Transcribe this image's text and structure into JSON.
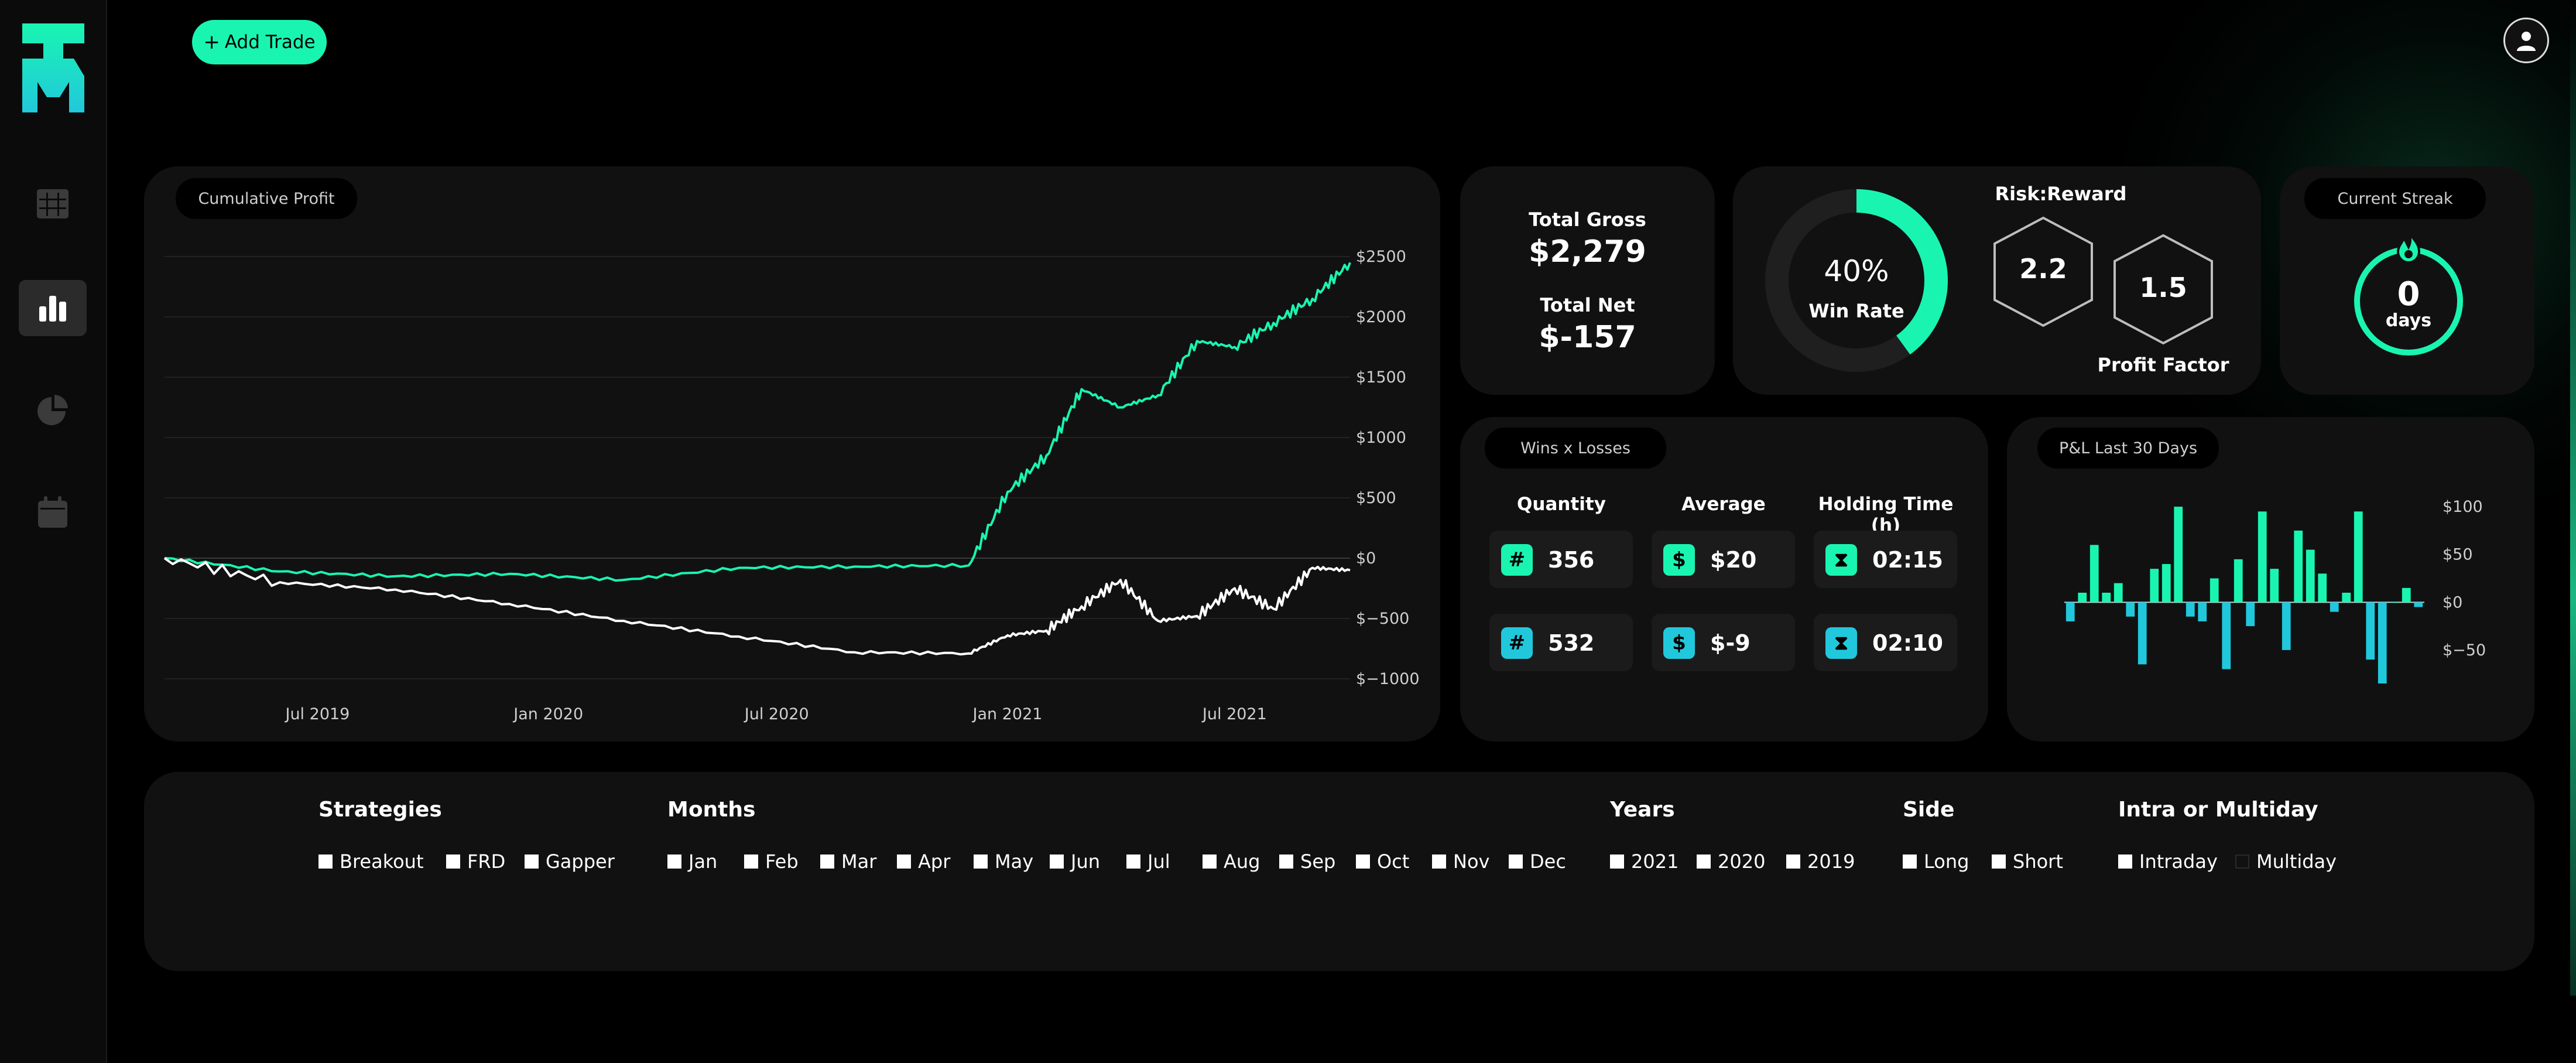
{
  "header": {
    "add_trade_label": "Add Trade",
    "add_icon": "plus-icon",
    "avatar_icon": "user-icon"
  },
  "sidebar": {
    "logo": "TM",
    "items": [
      {
        "name": "grid-icon",
        "active": false
      },
      {
        "name": "bar-chart-icon",
        "active": true
      },
      {
        "name": "pie-chart-icon",
        "active": false
      },
      {
        "name": "calendar-icon",
        "active": false
      }
    ]
  },
  "cumulative": {
    "title": "Cumulative Profit",
    "chart_data": {
      "type": "line",
      "x_ticks": [
        "Jul 2019",
        "Jan 2020",
        "Jul 2020",
        "Jan 2021",
        "Jul 2021"
      ],
      "y_ticks": [
        "$2500",
        "$2000",
        "$1500",
        "$1000",
        "$500",
        "$0",
        "$−500",
        "$−1000"
      ],
      "ylim": [
        -1000,
        2500
      ],
      "series": [
        {
          "color": "#19f5b1",
          "x": [
            "2019-03",
            "2019-06",
            "2019-09",
            "2019-12",
            "2020-03",
            "2020-06",
            "2020-09",
            "2020-12",
            "2021-01",
            "2021-02",
            "2021-03",
            "2021-04",
            "2021-05",
            "2021-06",
            "2021-07",
            "2021-08",
            "2021-09",
            "2021-10"
          ],
          "values": [
            0,
            -110,
            -150,
            -130,
            -180,
            -80,
            -70,
            -60,
            550,
            850,
            1400,
            1250,
            1350,
            1800,
            1750,
            1950,
            2150,
            2450
          ]
        },
        {
          "color": "#ffffff",
          "x": [
            "2019-03",
            "2019-06",
            "2019-09",
            "2019-12",
            "2020-03",
            "2020-06",
            "2020-09",
            "2020-12",
            "2021-01",
            "2021-02",
            "2021-03",
            "2021-04",
            "2021-05",
            "2021-06",
            "2021-07",
            "2021-08",
            "2021-09",
            "2021-10"
          ],
          "values": [
            0,
            -200,
            -260,
            -380,
            -520,
            -650,
            -780,
            -790,
            -640,
            -600,
            -400,
            -180,
            -520,
            -480,
            -250,
            -420,
            -80,
            -100
          ]
        }
      ]
    }
  },
  "totals": {
    "gross_label": "Total Gross",
    "gross_value": "$2,279",
    "net_label": "Total Net",
    "net_value": "$-157"
  },
  "win_rate": {
    "value": "40%",
    "label": "Win Rate",
    "fraction": 0.4
  },
  "risk_reward": {
    "title": "Risk:Reward",
    "value": "2.2",
    "profit_factor_value": "1.5",
    "profit_factor_label": "Profit Factor"
  },
  "streak": {
    "title": "Current Streak",
    "value": "0",
    "unit": "days",
    "icon": "fire-icon"
  },
  "wins_losses": {
    "title": "Wins x Losses",
    "headers": [
      "Quantity",
      "Average",
      "Holding Time (h)"
    ],
    "rows": [
      {
        "quantity": "356",
        "average": "$20",
        "holding": "02:15"
      },
      {
        "quantity": "532",
        "average": "$-9",
        "holding": "02:10"
      }
    ],
    "icons": {
      "quantity": "hash-icon",
      "average": "dollar-icon",
      "holding": "hourglass-icon"
    }
  },
  "pnl30": {
    "title": "P&L Last 30 Days",
    "chart_data": {
      "type": "bar",
      "y_ticks": [
        "$100",
        "$50",
        "$0",
        "$−50"
      ],
      "ylim": [
        -85,
        105
      ],
      "values": [
        -20,
        10,
        60,
        10,
        20,
        -15,
        -65,
        35,
        40,
        100,
        -15,
        -20,
        25,
        -70,
        45,
        -25,
        95,
        35,
        -50,
        75,
        55,
        30,
        -10,
        10,
        95,
        -60,
        -85,
        0,
        15,
        -5
      ],
      "colors": {
        "positive": "#19f5b1",
        "negative": "#21c8dc"
      }
    }
  },
  "filters": {
    "strategies": {
      "title": "Strategies",
      "options": [
        {
          "label": "Breakout",
          "checked": true
        },
        {
          "label": "FRD",
          "checked": true
        },
        {
          "label": "Gapper",
          "checked": true
        }
      ]
    },
    "months": {
      "title": "Months",
      "options": [
        {
          "label": "Jan",
          "checked": true
        },
        {
          "label": "Feb",
          "checked": true
        },
        {
          "label": "Mar",
          "checked": true
        },
        {
          "label": "Apr",
          "checked": true
        },
        {
          "label": "May",
          "checked": true
        },
        {
          "label": "Jun",
          "checked": true
        },
        {
          "label": "Jul",
          "checked": true
        },
        {
          "label": "Aug",
          "checked": true
        },
        {
          "label": "Sep",
          "checked": true
        },
        {
          "label": "Oct",
          "checked": true
        },
        {
          "label": "Nov",
          "checked": true
        },
        {
          "label": "Dec",
          "checked": true
        }
      ]
    },
    "years": {
      "title": "Years",
      "options": [
        {
          "label": "2021",
          "checked": true
        },
        {
          "label": "2020",
          "checked": true
        },
        {
          "label": "2019",
          "checked": true
        }
      ]
    },
    "side": {
      "title": "Side",
      "options": [
        {
          "label": "Long",
          "checked": true
        },
        {
          "label": "Short",
          "checked": true
        }
      ]
    },
    "intra": {
      "title": "Intra or Multiday",
      "options": [
        {
          "label": "Intraday",
          "checked": true
        },
        {
          "label": "Multiday",
          "checked": false
        }
      ]
    }
  }
}
